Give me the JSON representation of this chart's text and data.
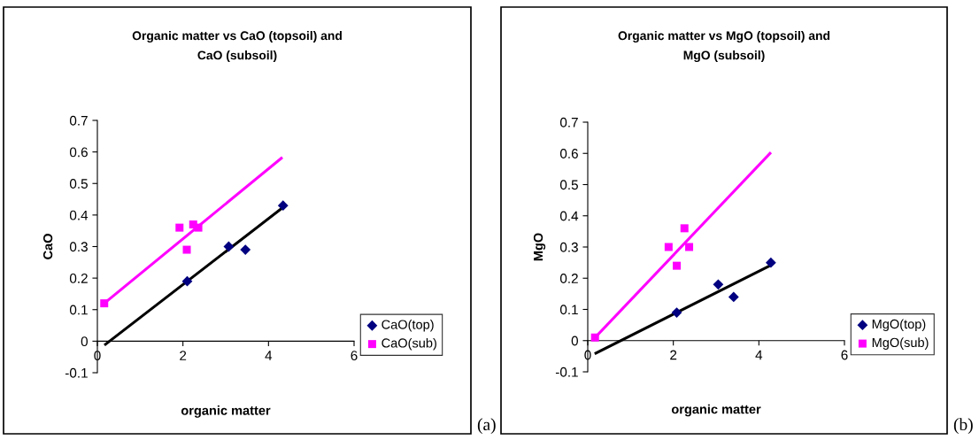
{
  "chart_data": [
    {
      "type": "scatter",
      "title": "Organic matter vs CaO (topsoil) and\nCaO (subsoil)",
      "xlabel": "organic matter",
      "ylabel": "CaO",
      "xlim": [
        0,
        6
      ],
      "xticks": [
        0,
        2,
        4,
        6
      ],
      "ylim": [
        -0.1,
        0.7
      ],
      "yticks": [
        -0.1,
        0,
        0.1,
        0.2,
        0.3,
        0.4,
        0.5,
        0.6,
        0.7
      ],
      "grid": false,
      "legend": "right",
      "annotations": [
        "(a)"
      ],
      "series": [
        {
          "name": "CaO(top)",
          "marker": "diamond",
          "color": "#000080",
          "x": [
            2.1,
            3.07,
            3.46,
            4.34
          ],
          "values": [
            0.19,
            0.3,
            0.29,
            0.43
          ]
        },
        {
          "name": "CaO(sub)",
          "marker": "square",
          "color": "#ff00ff",
          "x": [
            0.16,
            1.92,
            2.09,
            2.24,
            2.36
          ],
          "values": [
            0.12,
            0.36,
            0.29,
            0.37,
            0.36
          ]
        },
        {
          "type": "line",
          "color": "#000000",
          "x": [
            0.19,
            4.3
          ],
          "values": [
            -0.01,
            0.42
          ]
        },
        {
          "type": "line",
          "color": "#ff00ff",
          "x": [
            0.16,
            4.3
          ],
          "values": [
            0.12,
            0.58
          ]
        }
      ]
    },
    {
      "type": "scatter",
      "title": "Organic matter vs MgO (topsoil) and\nMgO (subsoil)",
      "xlabel": "organic matter",
      "ylabel": "MgO",
      "xlim": [
        0,
        6
      ],
      "xticks": [
        0,
        2,
        4,
        6
      ],
      "ylim": [
        -0.1,
        0.7
      ],
      "yticks": [
        -0.1,
        0,
        0.1,
        0.2,
        0.3,
        0.4,
        0.5,
        0.6,
        0.7
      ],
      "grid": false,
      "legend": "right",
      "annotations": [
        "(b)"
      ],
      "series": [
        {
          "name": "MgO(top)",
          "marker": "diamond",
          "color": "#000080",
          "x": [
            2.08,
            3.05,
            3.41,
            4.28
          ],
          "values": [
            0.09,
            0.18,
            0.14,
            0.25
          ]
        },
        {
          "name": "MgO(sub)",
          "marker": "square",
          "color": "#ff00ff",
          "x": [
            0.17,
            1.89,
            2.08,
            2.26,
            2.37
          ],
          "values": [
            0.01,
            0.3,
            0.24,
            0.36,
            0.3
          ]
        },
        {
          "type": "line",
          "color": "#000000",
          "x": [
            0.19,
            4.26
          ],
          "values": [
            -0.04,
            0.24
          ]
        },
        {
          "type": "line",
          "color": "#ff00ff",
          "x": [
            0.17,
            4.26
          ],
          "values": [
            0.01,
            0.6
          ]
        }
      ]
    }
  ]
}
